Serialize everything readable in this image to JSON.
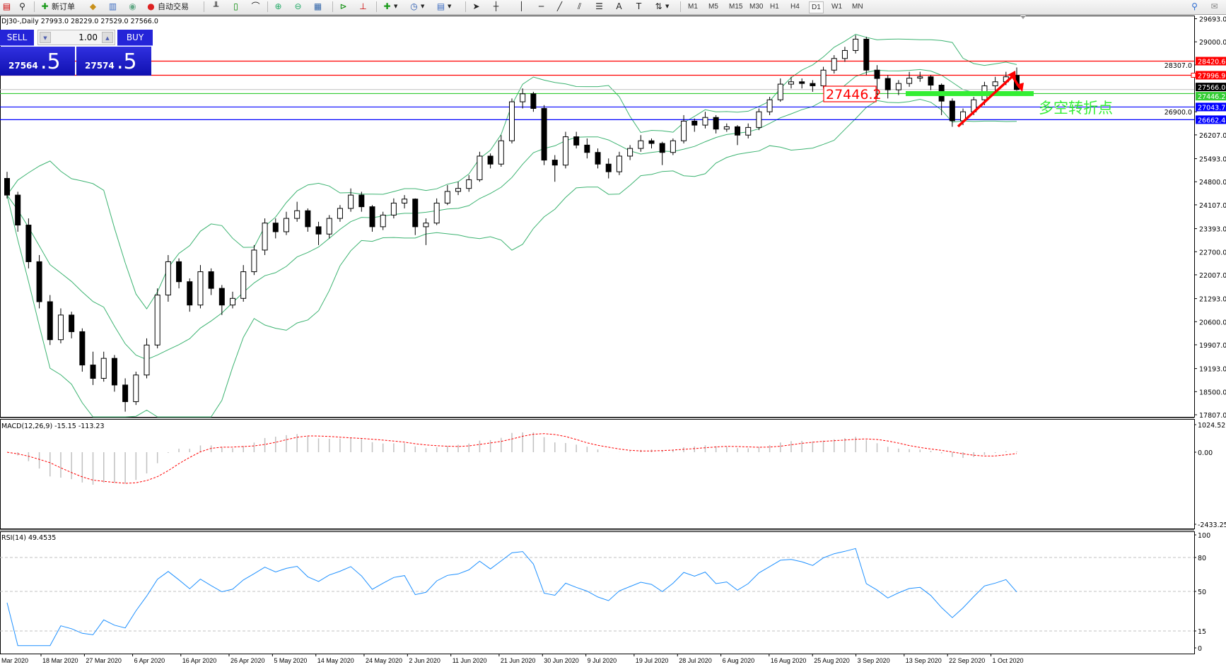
{
  "toolbar": {
    "new_order_label": "新订单",
    "auto_trading_label": "自动交易",
    "timeframes": [
      "M1",
      "M5",
      "M15",
      "M30",
      "H1",
      "H4",
      "D1",
      "W1",
      "MN"
    ],
    "active_timeframe": "D1"
  },
  "chart": {
    "header": "DJ30-,Daily  27993.0 28229.0 27529.0 27566.0"
  },
  "trade_panel": {
    "sell_label": "SELL",
    "buy_label": "BUY",
    "lot": "1.00",
    "sell_price_main": "27564",
    "sell_price_big": ".5",
    "buy_price_main": "27574",
    "buy_price_big": ".5"
  },
  "chart_data": {
    "type": "candlestick",
    "symbol": "DJ30-",
    "timeframe": "Daily",
    "ohlc": [
      [
        24900,
        25100,
        24300,
        24400
      ],
      [
        24400,
        24500,
        23300,
        23500
      ],
      [
        23500,
        23700,
        22200,
        22400
      ],
      [
        22400,
        22600,
        21000,
        21200
      ],
      [
        21200,
        21400,
        19900,
        20060
      ],
      [
        20060,
        21000,
        19950,
        20800
      ],
      [
        20800,
        20900,
        20100,
        20300
      ],
      [
        20300,
        20400,
        19100,
        19300
      ],
      [
        19300,
        19700,
        18700,
        18900
      ],
      [
        18900,
        19700,
        18800,
        19500
      ],
      [
        19500,
        19600,
        18500,
        18700
      ],
      [
        18700,
        18900,
        17900,
        18200
      ],
      [
        18200,
        19100,
        18100,
        19000
      ],
      [
        19000,
        20100,
        18900,
        19900
      ],
      [
        19900,
        21600,
        19800,
        21400
      ],
      [
        21400,
        22600,
        21200,
        22400
      ],
      [
        22400,
        22500,
        21600,
        21800
      ],
      [
        21800,
        21900,
        20900,
        21100
      ],
      [
        21100,
        22300,
        21000,
        22100
      ],
      [
        22100,
        22200,
        21400,
        21600
      ],
      [
        21600,
        21700,
        20800,
        21100
      ],
      [
        21100,
        21500,
        21000,
        21300
      ],
      [
        21300,
        22300,
        21200,
        22100
      ],
      [
        22100,
        22900,
        22000,
        22750
      ],
      [
        22750,
        23700,
        22600,
        23560
      ],
      [
        23560,
        23700,
        23100,
        23300
      ],
      [
        23300,
        23900,
        23200,
        23700
      ],
      [
        23700,
        24200,
        23600,
        23930
      ],
      [
        23930,
        24000,
        23300,
        23450
      ],
      [
        23450,
        23600,
        22900,
        23230
      ],
      [
        23230,
        23800,
        23100,
        23700
      ],
      [
        23700,
        24100,
        23600,
        24000
      ],
      [
        24000,
        24600,
        23900,
        24400
      ],
      [
        24400,
        24500,
        23900,
        24050
      ],
      [
        24050,
        24100,
        23300,
        23450
      ],
      [
        23450,
        23900,
        23350,
        23800
      ],
      [
        23800,
        24300,
        23700,
        24160
      ],
      [
        24160,
        24400,
        24000,
        24280
      ],
      [
        24280,
        24300,
        23200,
        23450
      ],
      [
        23450,
        23700,
        22900,
        23560
      ],
      [
        23560,
        24300,
        23500,
        24160
      ],
      [
        24160,
        24700,
        24100,
        24510
      ],
      [
        24510,
        24800,
        24400,
        24600
      ],
      [
        24600,
        25000,
        24500,
        24860
      ],
      [
        24860,
        25700,
        24800,
        25570
      ],
      [
        25570,
        25650,
        25200,
        25330
      ],
      [
        25330,
        26200,
        25250,
        26030
      ],
      [
        26030,
        27300,
        25950,
        27200
      ],
      [
        27200,
        27600,
        27000,
        27440
      ],
      [
        27440,
        27500,
        26900,
        27000
      ],
      [
        27000,
        27100,
        25300,
        25450
      ],
      [
        25450,
        25600,
        24800,
        25300
      ],
      [
        25300,
        26300,
        25200,
        26150
      ],
      [
        26150,
        26300,
        25800,
        25900
      ],
      [
        25900,
        26100,
        25500,
        25680
      ],
      [
        25680,
        25800,
        25200,
        25330
      ],
      [
        25330,
        25500,
        24900,
        25100
      ],
      [
        25100,
        25700,
        25000,
        25570
      ],
      [
        25570,
        25900,
        25450,
        25800
      ],
      [
        25800,
        26200,
        25700,
        26030
      ],
      [
        26030,
        26100,
        25800,
        25950
      ],
      [
        25950,
        26000,
        25300,
        25680
      ],
      [
        25680,
        26100,
        25600,
        26030
      ],
      [
        26030,
        26800,
        25950,
        26620
      ],
      [
        26620,
        26700,
        26300,
        26500
      ],
      [
        26500,
        26900,
        26400,
        26730
      ],
      [
        26730,
        26800,
        26250,
        26380
      ],
      [
        26380,
        26550,
        26300,
        26450
      ],
      [
        26450,
        26500,
        25900,
        26200
      ],
      [
        26200,
        26550,
        26100,
        26430
      ],
      [
        26430,
        27000,
        26350,
        26900
      ],
      [
        26900,
        27350,
        26800,
        27260
      ],
      [
        27260,
        27900,
        27200,
        27730
      ],
      [
        27730,
        27950,
        27600,
        27800
      ],
      [
        27800,
        27900,
        27600,
        27750
      ],
      [
        27750,
        27850,
        27500,
        27680
      ],
      [
        27680,
        28250,
        27600,
        28150
      ],
      [
        28150,
        28600,
        28050,
        28500
      ],
      [
        28500,
        28850,
        28400,
        28740
      ],
      [
        28740,
        29200,
        28650,
        29080
      ],
      [
        29080,
        29150,
        28000,
        28150
      ],
      [
        28150,
        28300,
        27300,
        27900
      ],
      [
        27900,
        28000,
        27300,
        27560
      ],
      [
        27560,
        27850,
        27400,
        27750
      ],
      [
        27750,
        28100,
        27650,
        27910
      ],
      [
        27910,
        28100,
        27800,
        27950
      ],
      [
        27950,
        28000,
        27550,
        27700
      ],
      [
        27700,
        27750,
        26800,
        27220
      ],
      [
        27220,
        27300,
        26450,
        26630
      ],
      [
        26630,
        27000,
        26500,
        26900
      ],
      [
        26900,
        27350,
        26800,
        27260
      ],
      [
        27260,
        27800,
        27100,
        27680
      ],
      [
        27680,
        27950,
        27500,
        27800
      ],
      [
        27800,
        28100,
        27700,
        27950
      ],
      [
        27993,
        28229,
        27529,
        27566
      ]
    ],
    "price_axis": {
      "range": [
        17807.0,
        29693.0
      ],
      "ticks": [
        "29693.0",
        "29000.0",
        "28307.0",
        "26900.0",
        "26207.0",
        "25493.0",
        "24800.0",
        "24107.0",
        "23393.0",
        "22700.0",
        "22007.0",
        "21293.0",
        "20600.0",
        "19907.0",
        "19193.0",
        "18500.0",
        "17807.0"
      ],
      "current_price": "27566.0"
    },
    "horizontal_lines": [
      {
        "value": 28420.6,
        "label": "28420.6",
        "color": "#ff0000"
      },
      {
        "value": 27996.9,
        "label": "27996.9",
        "color": "#ff0000"
      },
      {
        "value": 27446.2,
        "label": "27446.2",
        "color": "#33cc33"
      },
      {
        "value": 27043.7,
        "label": "27043.7",
        "color": "#0000ff"
      },
      {
        "value": 26662.4,
        "label": "26662.4",
        "color": "#0000ff"
      }
    ],
    "annotations": {
      "level_box": "27446.2",
      "pivot_text": "多空转折点",
      "arrow_color": "#ff0000",
      "zone_color": "#33ee33"
    },
    "bands_color": "#3cb371",
    "date_labels": [
      "Mar 2020",
      "18 Mar 2020",
      "27 Mar 2020",
      "6 Apr 2020",
      "16 Apr 2020",
      "26 Apr 2020",
      "5 May 2020",
      "14 May 2020",
      "24 May 2020",
      "2 Jun 2020",
      "11 Jun 2020",
      "21 Jun 2020",
      "30 Jun 2020",
      "9 Jul 2020",
      "19 Jul 2020",
      "28 Jul 2020",
      "6 Aug 2020",
      "16 Aug 2020",
      "25 Aug 2020",
      "3 Sep 2020",
      "13 Sep 2020",
      "22 Sep 2020",
      "1 Oct 2020"
    ],
    "macd": {
      "label": "MACD(12,26,9) -15.15 -113.23",
      "ticks": [
        "1024.52",
        "0.00",
        "-2433.25"
      ],
      "range": [
        -2433.25,
        1024.52
      ],
      "histogram_color": "#c0c0c0",
      "signal_color": "#ff0000"
    },
    "rsi": {
      "label": "RSI(14) 49.4535",
      "ticks": [
        "100",
        "80",
        "50",
        "15",
        "0"
      ],
      "levels": [
        80,
        50,
        15
      ],
      "range": [
        0,
        100
      ],
      "line_color": "#1e90ff"
    }
  }
}
